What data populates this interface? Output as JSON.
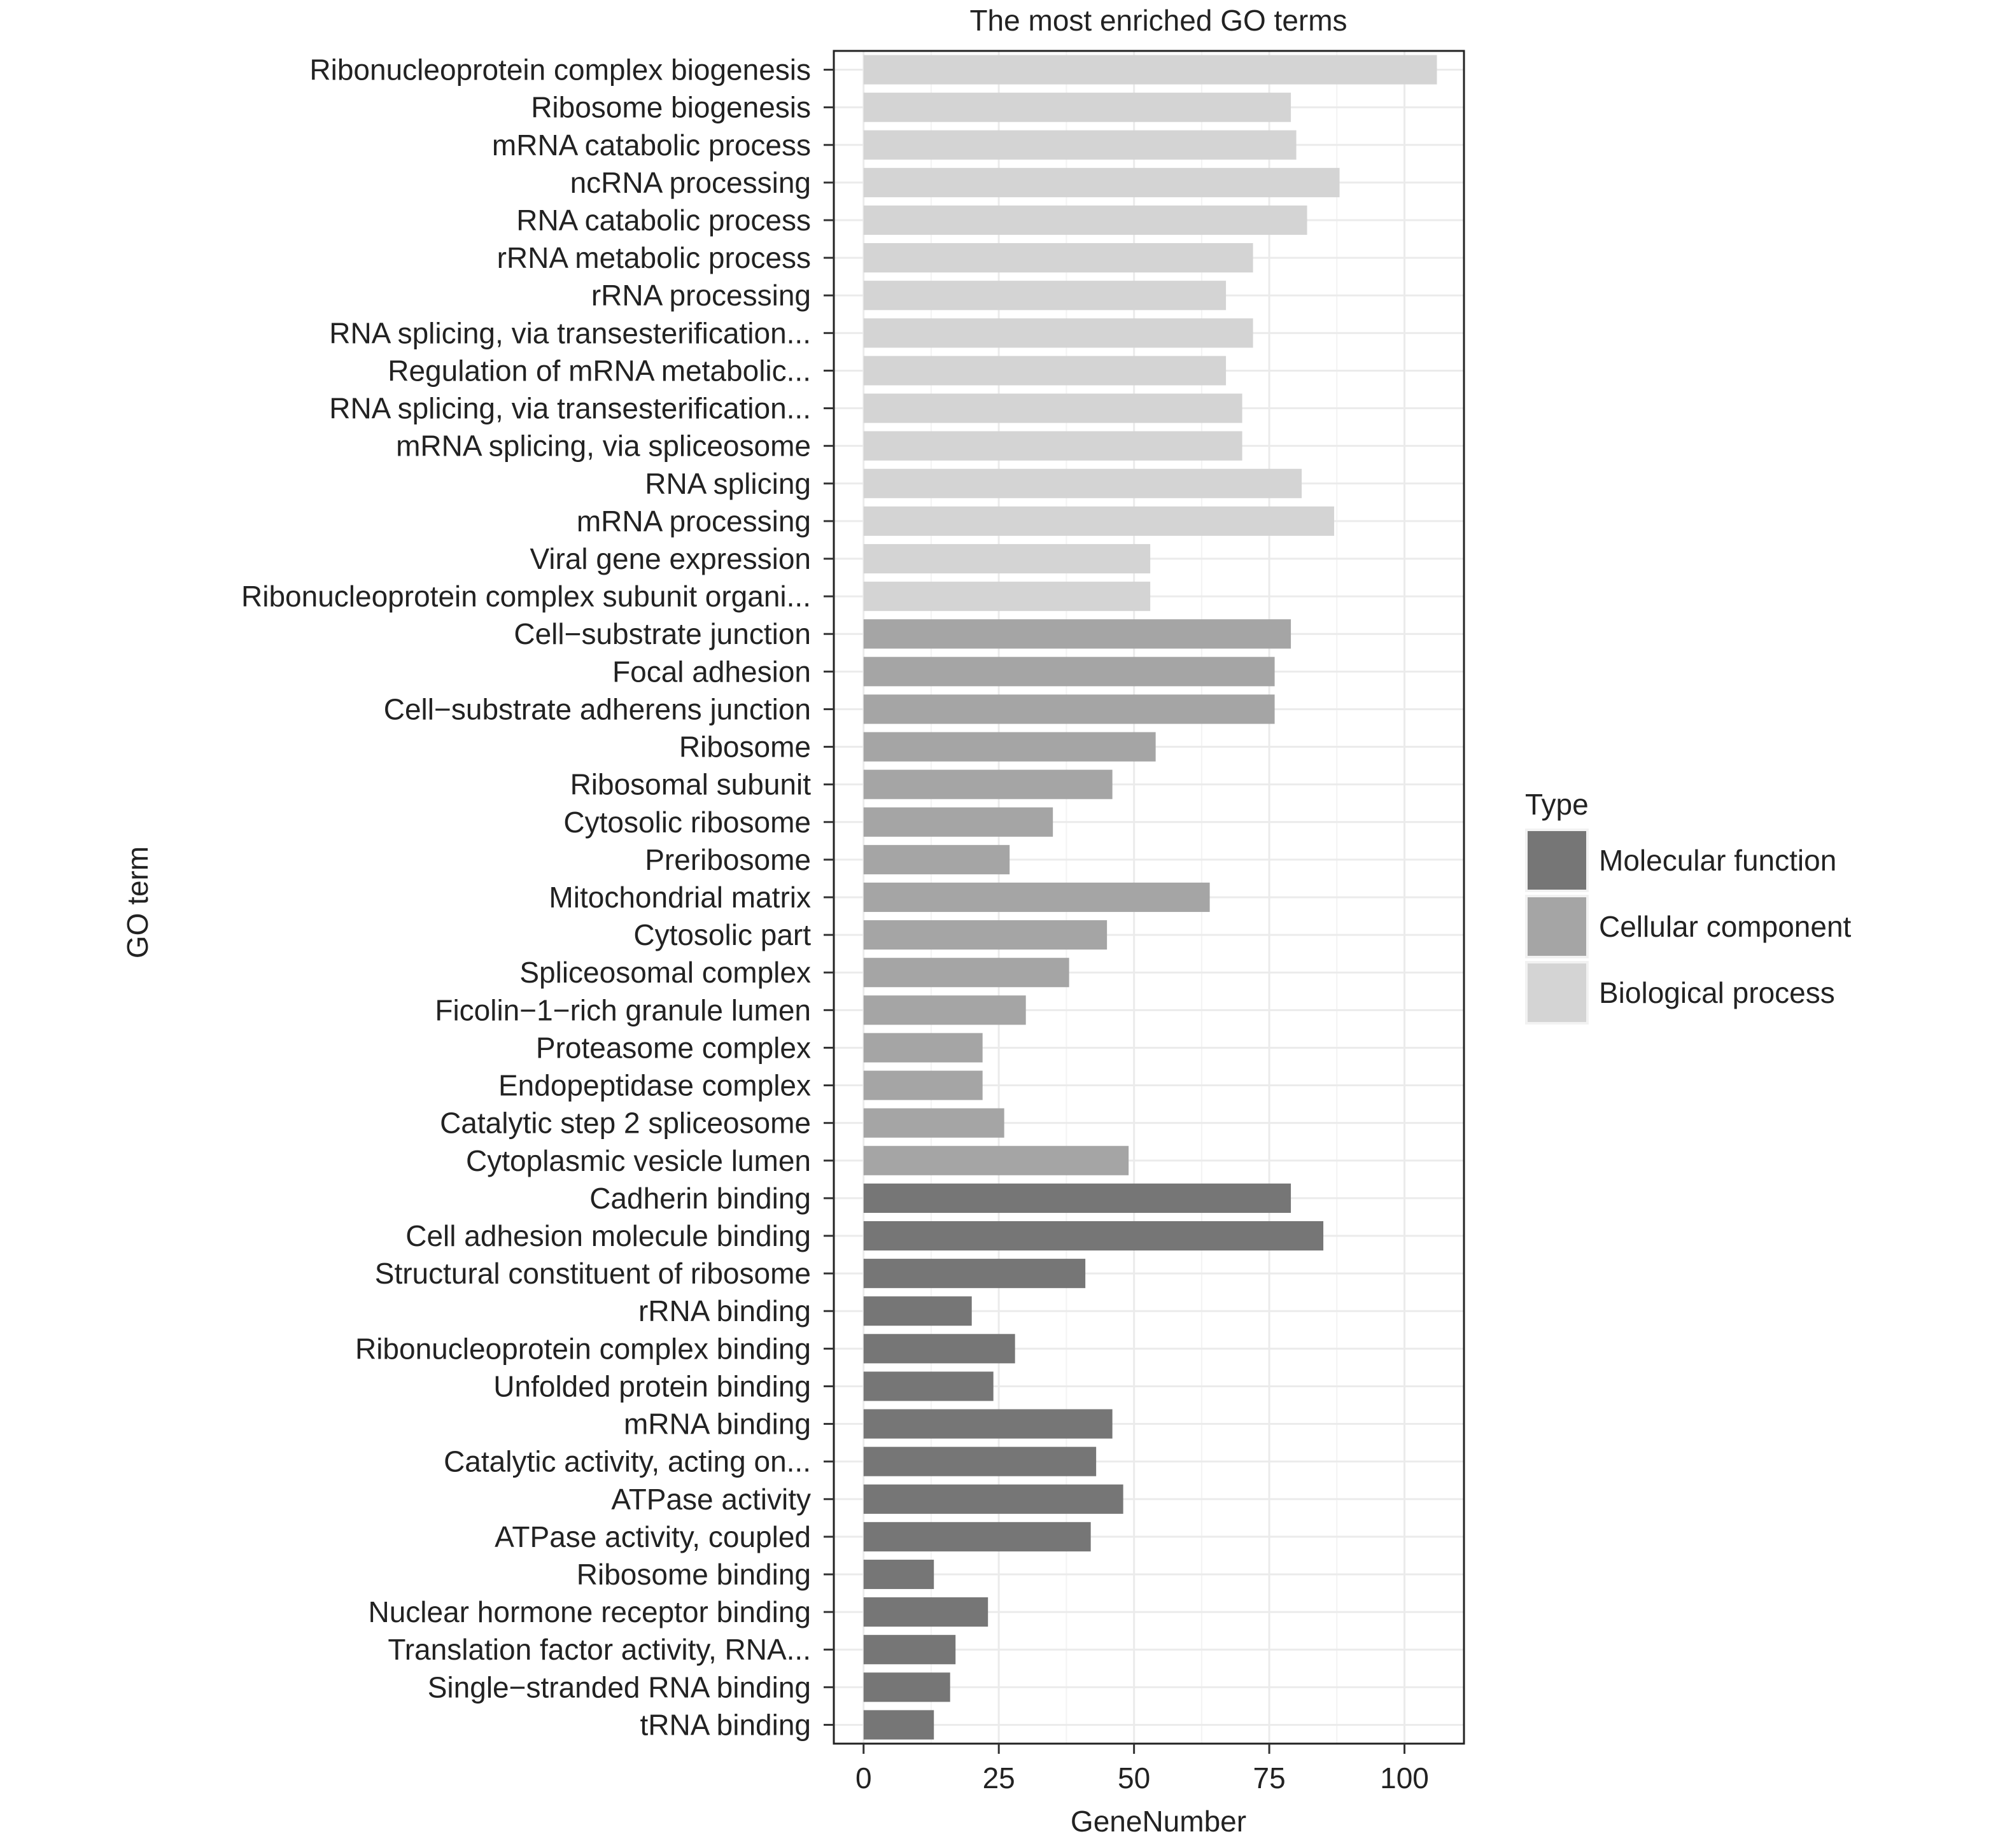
{
  "chart_data": {
    "type": "bar",
    "orientation": "horizontal",
    "title": "The most enriched GO terms",
    "xlabel": "GeneNumber",
    "ylabel": "GO term",
    "xlim": [
      -5.5,
      111
    ],
    "xticks": [
      0,
      25,
      50,
      75,
      100
    ],
    "grid": true,
    "legend": {
      "title": "Type",
      "position": "right",
      "entries": [
        {
          "label": "Molecular function",
          "color": "#767676"
        },
        {
          "label": "Cellular component",
          "color": "#a5a5a5"
        },
        {
          "label": "Biological process",
          "color": "#d4d4d4"
        }
      ]
    },
    "categories": [
      "Ribonucleoprotein complex biogenesis",
      "Ribosome biogenesis",
      "mRNA catabolic process",
      "ncRNA processing",
      "RNA catabolic process",
      "rRNA metabolic process",
      "rRNA processing",
      "RNA splicing, via transesterification...",
      "Regulation of mRNA metabolic...",
      "RNA splicing, via transesterification...",
      "mRNA splicing, via spliceosome",
      "RNA splicing",
      "mRNA processing",
      "Viral gene expression",
      "Ribonucleoprotein complex subunit organi...",
      "Cell−substrate junction",
      "Focal adhesion",
      "Cell−substrate adherens junction",
      "Ribosome",
      "Ribosomal subunit",
      "Cytosolic ribosome",
      "Preribosome",
      "Mitochondrial matrix",
      "Cytosolic part",
      "Spliceosomal complex",
      "Ficolin−1−rich granule lumen",
      "Proteasome complex",
      "Endopeptidase complex",
      "Catalytic step 2 spliceosome",
      "Cytoplasmic vesicle lumen",
      "Cadherin binding",
      "Cell adhesion molecule binding",
      "Structural constituent of ribosome",
      "rRNA binding",
      "Ribonucleoprotein complex binding",
      "Unfolded protein binding",
      "mRNA binding",
      "Catalytic activity, acting on...",
      "ATPase activity",
      "ATPase activity, coupled",
      "Ribosome binding",
      "Nuclear hormone receptor binding",
      "Translation factor activity, RNA...",
      "Single−stranded RNA binding",
      "tRNA binding"
    ],
    "values": [
      106,
      79,
      80,
      88,
      82,
      72,
      67,
      72,
      67,
      70,
      70,
      81,
      87,
      53,
      53,
      79,
      76,
      76,
      54,
      46,
      35,
      27,
      64,
      45,
      38,
      30,
      22,
      22,
      26,
      49,
      79,
      85,
      41,
      20,
      28,
      24,
      46,
      43,
      48,
      42,
      13,
      23,
      17,
      16,
      13
    ],
    "types": [
      "Biological process",
      "Biological process",
      "Biological process",
      "Biological process",
      "Biological process",
      "Biological process",
      "Biological process",
      "Biological process",
      "Biological process",
      "Biological process",
      "Biological process",
      "Biological process",
      "Biological process",
      "Biological process",
      "Biological process",
      "Cellular component",
      "Cellular component",
      "Cellular component",
      "Cellular component",
      "Cellular component",
      "Cellular component",
      "Cellular component",
      "Cellular component",
      "Cellular component",
      "Cellular component",
      "Cellular component",
      "Cellular component",
      "Cellular component",
      "Cellular component",
      "Cellular component",
      "Molecular function",
      "Molecular function",
      "Molecular function",
      "Molecular function",
      "Molecular function",
      "Molecular function",
      "Molecular function",
      "Molecular function",
      "Molecular function",
      "Molecular function",
      "Molecular function",
      "Molecular function",
      "Molecular function",
      "Molecular function",
      "Molecular function"
    ]
  }
}
